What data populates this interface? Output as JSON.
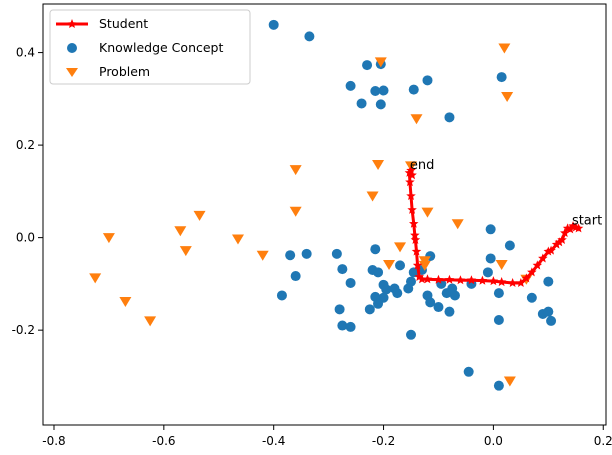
{
  "chart_data": {
    "type": "scatter",
    "xlim": [
      -0.82,
      0.205
    ],
    "ylim": [
      -0.405,
      0.505
    ],
    "xticks": [
      -0.8,
      -0.6,
      -0.4,
      -0.2,
      0.0,
      0.2
    ],
    "xtick_labels": [
      "-0.8",
      "-0.6",
      "-0.4",
      "-0.2",
      "0.0",
      "0.2"
    ],
    "yticks": [
      0.4,
      0.2,
      0.0,
      -0.2
    ],
    "ytick_labels": [
      "0.4",
      "0.2",
      "0.0",
      "-0.2"
    ],
    "grid": false,
    "legend_position": "top-left",
    "legend": [
      "Student",
      "Knowledge Concept",
      "Problem"
    ],
    "colors": {
      "student": "#ff0000",
      "concept": "#1f77b4",
      "problem": "#ff7f0e"
    },
    "series": [
      {
        "name": "Student",
        "type": "line",
        "marker": "star",
        "points": [
          [
            0.155,
            0.02
          ],
          [
            0.15,
            0.022
          ],
          [
            0.145,
            0.025
          ],
          [
            0.14,
            0.018
          ],
          [
            0.135,
            0.02
          ],
          [
            0.13,
            0.01
          ],
          [
            0.125,
            -0.005
          ],
          [
            0.12,
            -0.01
          ],
          [
            0.115,
            -0.015
          ],
          [
            0.105,
            -0.028
          ],
          [
            0.1,
            -0.03
          ],
          [
            0.09,
            -0.045
          ],
          [
            0.08,
            -0.06
          ],
          [
            0.07,
            -0.075
          ],
          [
            0.06,
            -0.088
          ],
          [
            0.05,
            -0.098
          ],
          [
            0.035,
            -0.098
          ],
          [
            0.015,
            -0.096
          ],
          [
            0.0,
            -0.094
          ],
          [
            -0.02,
            -0.093
          ],
          [
            -0.04,
            -0.092
          ],
          [
            -0.06,
            -0.092
          ],
          [
            -0.08,
            -0.091
          ],
          [
            -0.1,
            -0.091
          ],
          [
            -0.12,
            -0.09
          ],
          [
            -0.13,
            -0.09
          ],
          [
            -0.135,
            -0.085
          ],
          [
            -0.138,
            -0.06
          ],
          [
            -0.14,
            -0.03
          ],
          [
            -0.142,
            -0.005
          ],
          [
            -0.143,
            0.005
          ],
          [
            -0.145,
            0.03
          ],
          [
            -0.148,
            0.06
          ],
          [
            -0.15,
            0.09
          ],
          [
            -0.152,
            0.12
          ],
          [
            -0.153,
            0.14
          ],
          [
            -0.15,
            0.145
          ],
          [
            -0.148,
            0.135
          ]
        ]
      },
      {
        "name": "Knowledge Concept",
        "type": "scatter",
        "marker": "circle",
        "points": [
          [
            -0.4,
            0.46
          ],
          [
            -0.335,
            0.435
          ],
          [
            -0.23,
            0.373
          ],
          [
            -0.205,
            0.375
          ],
          [
            -0.26,
            0.328
          ],
          [
            -0.215,
            0.317
          ],
          [
            -0.2,
            0.318
          ],
          [
            -0.24,
            0.29
          ],
          [
            -0.205,
            0.288
          ],
          [
            -0.12,
            0.34
          ],
          [
            -0.145,
            0.32
          ],
          [
            -0.08,
            0.26
          ],
          [
            0.015,
            0.347
          ],
          [
            -0.34,
            -0.035
          ],
          [
            -0.37,
            -0.038
          ],
          [
            -0.285,
            -0.035
          ],
          [
            -0.275,
            -0.068
          ],
          [
            -0.36,
            -0.083
          ],
          [
            -0.385,
            -0.125
          ],
          [
            -0.26,
            -0.098
          ],
          [
            -0.215,
            -0.025
          ],
          [
            -0.22,
            -0.07
          ],
          [
            -0.21,
            -0.075
          ],
          [
            -0.17,
            -0.06
          ],
          [
            -0.2,
            -0.102
          ],
          [
            -0.195,
            -0.112
          ],
          [
            -0.2,
            -0.13
          ],
          [
            -0.215,
            -0.128
          ],
          [
            -0.175,
            -0.12
          ],
          [
            -0.18,
            -0.11
          ],
          [
            -0.155,
            -0.11
          ],
          [
            -0.15,
            -0.095
          ],
          [
            -0.145,
            -0.075
          ],
          [
            -0.13,
            -0.07
          ],
          [
            -0.115,
            -0.04
          ],
          [
            -0.12,
            -0.125
          ],
          [
            -0.095,
            -0.1
          ],
          [
            -0.085,
            -0.12
          ],
          [
            -0.075,
            -0.11
          ],
          [
            -0.07,
            -0.125
          ],
          [
            -0.08,
            -0.16
          ],
          [
            -0.1,
            -0.15
          ],
          [
            -0.115,
            -0.14
          ],
          [
            -0.21,
            -0.143
          ],
          [
            -0.225,
            -0.155
          ],
          [
            -0.28,
            -0.155
          ],
          [
            -0.275,
            -0.19
          ],
          [
            -0.26,
            -0.193
          ],
          [
            -0.15,
            -0.21
          ],
          [
            -0.04,
            -0.1
          ],
          [
            -0.005,
            0.018
          ],
          [
            -0.005,
            -0.045
          ],
          [
            -0.01,
            -0.075
          ],
          [
            0.03,
            -0.017
          ],
          [
            0.01,
            -0.12
          ],
          [
            0.01,
            -0.178
          ],
          [
            0.07,
            -0.13
          ],
          [
            0.1,
            -0.095
          ],
          [
            0.09,
            -0.165
          ],
          [
            0.1,
            -0.16
          ],
          [
            0.105,
            -0.18
          ],
          [
            -0.045,
            -0.29
          ],
          [
            0.01,
            -0.32
          ]
        ]
      },
      {
        "name": "Problem",
        "type": "scatter",
        "marker": "triangle-down",
        "points": [
          [
            0.02,
            0.41
          ],
          [
            0.025,
            0.305
          ],
          [
            -0.205,
            0.38
          ],
          [
            -0.14,
            0.257
          ],
          [
            -0.21,
            0.158
          ],
          [
            -0.22,
            0.09
          ],
          [
            -0.36,
            0.147
          ],
          [
            -0.36,
            0.057
          ],
          [
            -0.15,
            0.155
          ],
          [
            -0.12,
            0.055
          ],
          [
            -0.065,
            0.03
          ],
          [
            -0.17,
            -0.02
          ],
          [
            -0.19,
            -0.058
          ],
          [
            -0.125,
            -0.05
          ],
          [
            -0.125,
            -0.06
          ],
          [
            -0.7,
            0.0
          ],
          [
            -0.57,
            0.015
          ],
          [
            -0.535,
            0.048
          ],
          [
            -0.465,
            -0.003
          ],
          [
            -0.56,
            -0.028
          ],
          [
            -0.42,
            -0.038
          ],
          [
            -0.725,
            -0.087
          ],
          [
            -0.67,
            -0.138
          ],
          [
            -0.625,
            -0.18
          ],
          [
            0.015,
            -0.058
          ],
          [
            0.06,
            -0.09
          ],
          [
            0.03,
            -0.31
          ]
        ]
      }
    ],
    "annotations": [
      {
        "text": "start",
        "x": 0.143,
        "y": 0.028
      },
      {
        "text": "end",
        "x": -0.152,
        "y": 0.148
      }
    ]
  }
}
